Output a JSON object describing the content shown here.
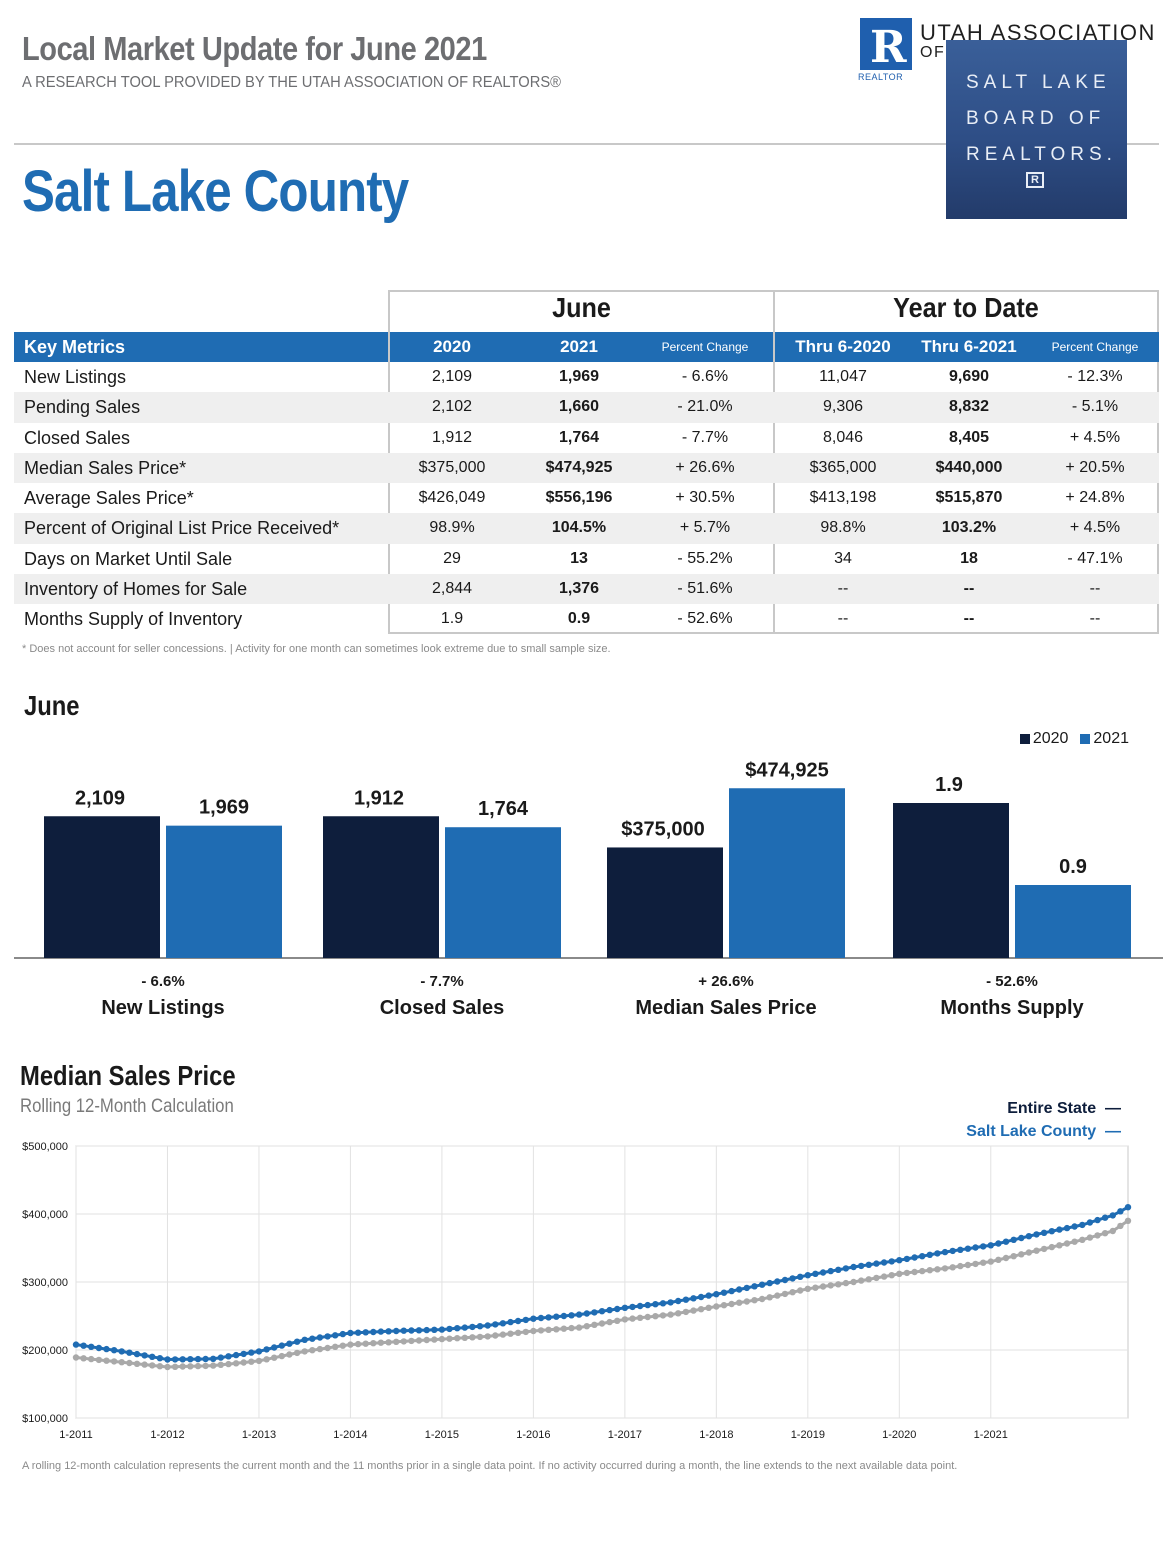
{
  "header": {
    "title": "Local Market Update for June 2021",
    "subtitle": "A RESEARCH TOOL PROVIDED BY THE UTAH ASSOCIATION OF REALTORS®",
    "county": "Salt Lake County"
  },
  "logos": {
    "uar_line1": "UTAH ASSOCIATION",
    "uar_line2": "OF",
    "uar_realtor": "REALTOR",
    "slbr_line1": "SALT LAKE",
    "slbr_line2": "BOARD OF",
    "slbr_line3": "REALTORS."
  },
  "table": {
    "group_june": "June",
    "group_ytd": "Year to Date",
    "headers": {
      "metric": "Key Metrics",
      "june_2020": "2020",
      "june_2021": "2021",
      "june_pct": "Percent Change",
      "ytd_2020": "Thru 6-2020",
      "ytd_2021": "Thru 6-2021",
      "ytd_pct": "Percent Change"
    },
    "rows": [
      {
        "metric": "New Listings",
        "j20": "2,109",
        "j21": "1,969",
        "jpc": "- 6.6%",
        "y20": "11,047",
        "y21": "9,690",
        "ypc": "- 12.3%"
      },
      {
        "metric": "Pending Sales",
        "j20": "2,102",
        "j21": "1,660",
        "jpc": "- 21.0%",
        "y20": "9,306",
        "y21": "8,832",
        "ypc": "- 5.1%"
      },
      {
        "metric": "Closed Sales",
        "j20": "1,912",
        "j21": "1,764",
        "jpc": "- 7.7%",
        "y20": "8,046",
        "y21": "8,405",
        "ypc": "+ 4.5%"
      },
      {
        "metric": "Median Sales Price*",
        "j20": "$375,000",
        "j21": "$474,925",
        "jpc": "+ 26.6%",
        "y20": "$365,000",
        "y21": "$440,000",
        "ypc": "+ 20.5%"
      },
      {
        "metric": "Average Sales Price*",
        "j20": "$426,049",
        "j21": "$556,196",
        "jpc": "+ 30.5%",
        "y20": "$413,198",
        "y21": "$515,870",
        "ypc": "+ 24.8%"
      },
      {
        "metric": "Percent of Original List Price Received*",
        "j20": "98.9%",
        "j21": "104.5%",
        "jpc": "+ 5.7%",
        "y20": "98.8%",
        "y21": "103.2%",
        "ypc": "+ 4.5%"
      },
      {
        "metric": "Days on Market Until Sale",
        "j20": "29",
        "j21": "13",
        "jpc": "- 55.2%",
        "y20": "34",
        "y21": "18",
        "ypc": "- 47.1%"
      },
      {
        "metric": "Inventory of Homes for Sale",
        "j20": "2,844",
        "j21": "1,376",
        "jpc": "- 51.6%",
        "y20": "--",
        "y21": "--",
        "ypc": "--"
      },
      {
        "metric": "Months Supply of Inventory",
        "j20": "1.9",
        "j21": "0.9",
        "jpc": "- 52.6%",
        "y20": "--",
        "y21": "--",
        "ypc": "--"
      }
    ],
    "footnote": "* Does not account for seller concessions.  |  Activity for one month can sometimes look extreme due to small sample size."
  },
  "colors": {
    "accent": "#1f6cb3",
    "navy": "#0e1e3c",
    "gray_line": "#a9a9a9",
    "county_line": "#1f6cb3"
  },
  "chart_data": [
    {
      "type": "bar",
      "title": "June",
      "legend": [
        "2020",
        "2021"
      ],
      "groups": [
        {
          "label": "New Listings",
          "change": "- 6.6%",
          "v2020": 2109,
          "v2021": 1969,
          "l2020": "2,109",
          "l2021": "1,969"
        },
        {
          "label": "Closed Sales",
          "change": "- 7.7%",
          "v2020": 1912,
          "v2021": 1764,
          "l2020": "1,912",
          "l2021": "1,764"
        },
        {
          "label": "Median Sales Price",
          "change": "+ 26.6%",
          "v2020": 375000,
          "v2021": 474925,
          "l2020": "$375,000",
          "l2021": "$474,925"
        },
        {
          "label": "Months Supply",
          "change": "- 52.6%",
          "v2020": 1.9,
          "v2021": 0.9,
          "l2020": "1.9",
          "l2021": "0.9"
        }
      ]
    },
    {
      "type": "line",
      "title": "Median Sales Price",
      "subtitle": "Rolling 12-Month Calculation",
      "yticks": [
        "$100,000",
        "$200,000",
        "$300,000",
        "$400,000",
        "$500,000"
      ],
      "ylim": [
        100000,
        500000
      ],
      "xticks": [
        "1-2011",
        "1-2012",
        "1-2013",
        "1-2014",
        "1-2015",
        "1-2016",
        "1-2017",
        "1-2018",
        "1-2019",
        "1-2020",
        "1-2021"
      ],
      "x_start": "1-2011",
      "x_end": "6-2021",
      "series": [
        {
          "name": "Entire State",
          "points": [
            [
              0,
              189000
            ],
            [
              6,
              182000
            ],
            [
              12,
              175000
            ],
            [
              18,
              177000
            ],
            [
              24,
              184000
            ],
            [
              30,
              198000
            ],
            [
              36,
              208000
            ],
            [
              42,
              212000
            ],
            [
              48,
              216000
            ],
            [
              54,
              220000
            ],
            [
              60,
              228000
            ],
            [
              66,
              233000
            ],
            [
              72,
              245000
            ],
            [
              78,
              252000
            ],
            [
              84,
              264000
            ],
            [
              90,
              275000
            ],
            [
              96,
              290000
            ],
            [
              102,
              300000
            ],
            [
              108,
              312000
            ],
            [
              114,
              320000
            ],
            [
              120,
              330000
            ],
            [
              126,
              346000
            ],
            [
              132,
              362000
            ],
            [
              136,
              375000
            ],
            [
              138,
              390000
            ]
          ]
        },
        {
          "name": "Salt Lake County",
          "points": [
            [
              0,
              208000
            ],
            [
              6,
              198000
            ],
            [
              12,
              186000
            ],
            [
              18,
              187000
            ],
            [
              24,
              198000
            ],
            [
              30,
              215000
            ],
            [
              36,
              225000
            ],
            [
              42,
              228000
            ],
            [
              48,
              230000
            ],
            [
              54,
              236000
            ],
            [
              60,
              246000
            ],
            [
              66,
              252000
            ],
            [
              72,
              262000
            ],
            [
              78,
              270000
            ],
            [
              84,
              282000
            ],
            [
              90,
              296000
            ],
            [
              96,
              310000
            ],
            [
              102,
              322000
            ],
            [
              108,
              332000
            ],
            [
              114,
              344000
            ],
            [
              120,
              354000
            ],
            [
              126,
              370000
            ],
            [
              132,
              384000
            ],
            [
              136,
              398000
            ],
            [
              138,
              410000
            ]
          ]
        }
      ]
    }
  ],
  "line_legend": {
    "state": "Entire State",
    "county": "Salt Lake County",
    "dash": "—"
  },
  "line_note": "A rolling 12-month calculation represents the current month and the 11 months prior in a single data point. If no activity occurred during a month, the line extends to the next available data point."
}
